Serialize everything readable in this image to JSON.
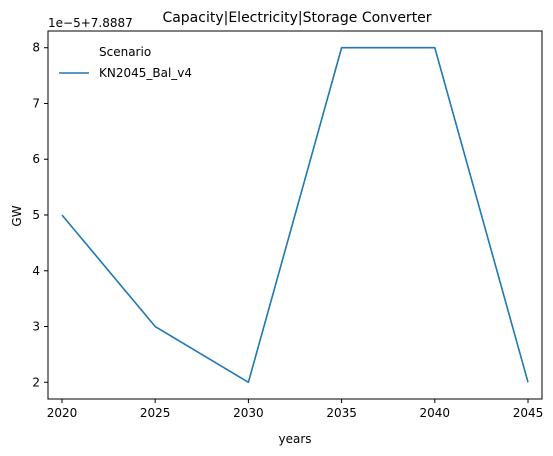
{
  "chart_data": {
    "type": "line",
    "title": "Capacity|Electricity|Storage Converter",
    "xlabel": "years",
    "ylabel": "GW",
    "y_offset_text": "1e−5+7.8887",
    "x": [
      2020,
      2025,
      2030,
      2035,
      2040,
      2045
    ],
    "x_ticks": [
      2020,
      2025,
      2030,
      2035,
      2040,
      2045
    ],
    "y_ticks": [
      2,
      3,
      4,
      5,
      6,
      7,
      8
    ],
    "y_tick_labels": [
      "2",
      "3",
      "4",
      "5",
      "6",
      "7",
      "8"
    ],
    "xlim": [
      2019.25,
      2045.75
    ],
    "ylim": [
      1.7,
      8.3
    ],
    "series": [
      {
        "name": "KN2045_Bal_v4",
        "color": "#1f77b4",
        "values": [
          5,
          3,
          2,
          8,
          8,
          2
        ]
      }
    ],
    "legend": {
      "title": "Scenario",
      "placement": "top-left"
    },
    "grid": false
  }
}
